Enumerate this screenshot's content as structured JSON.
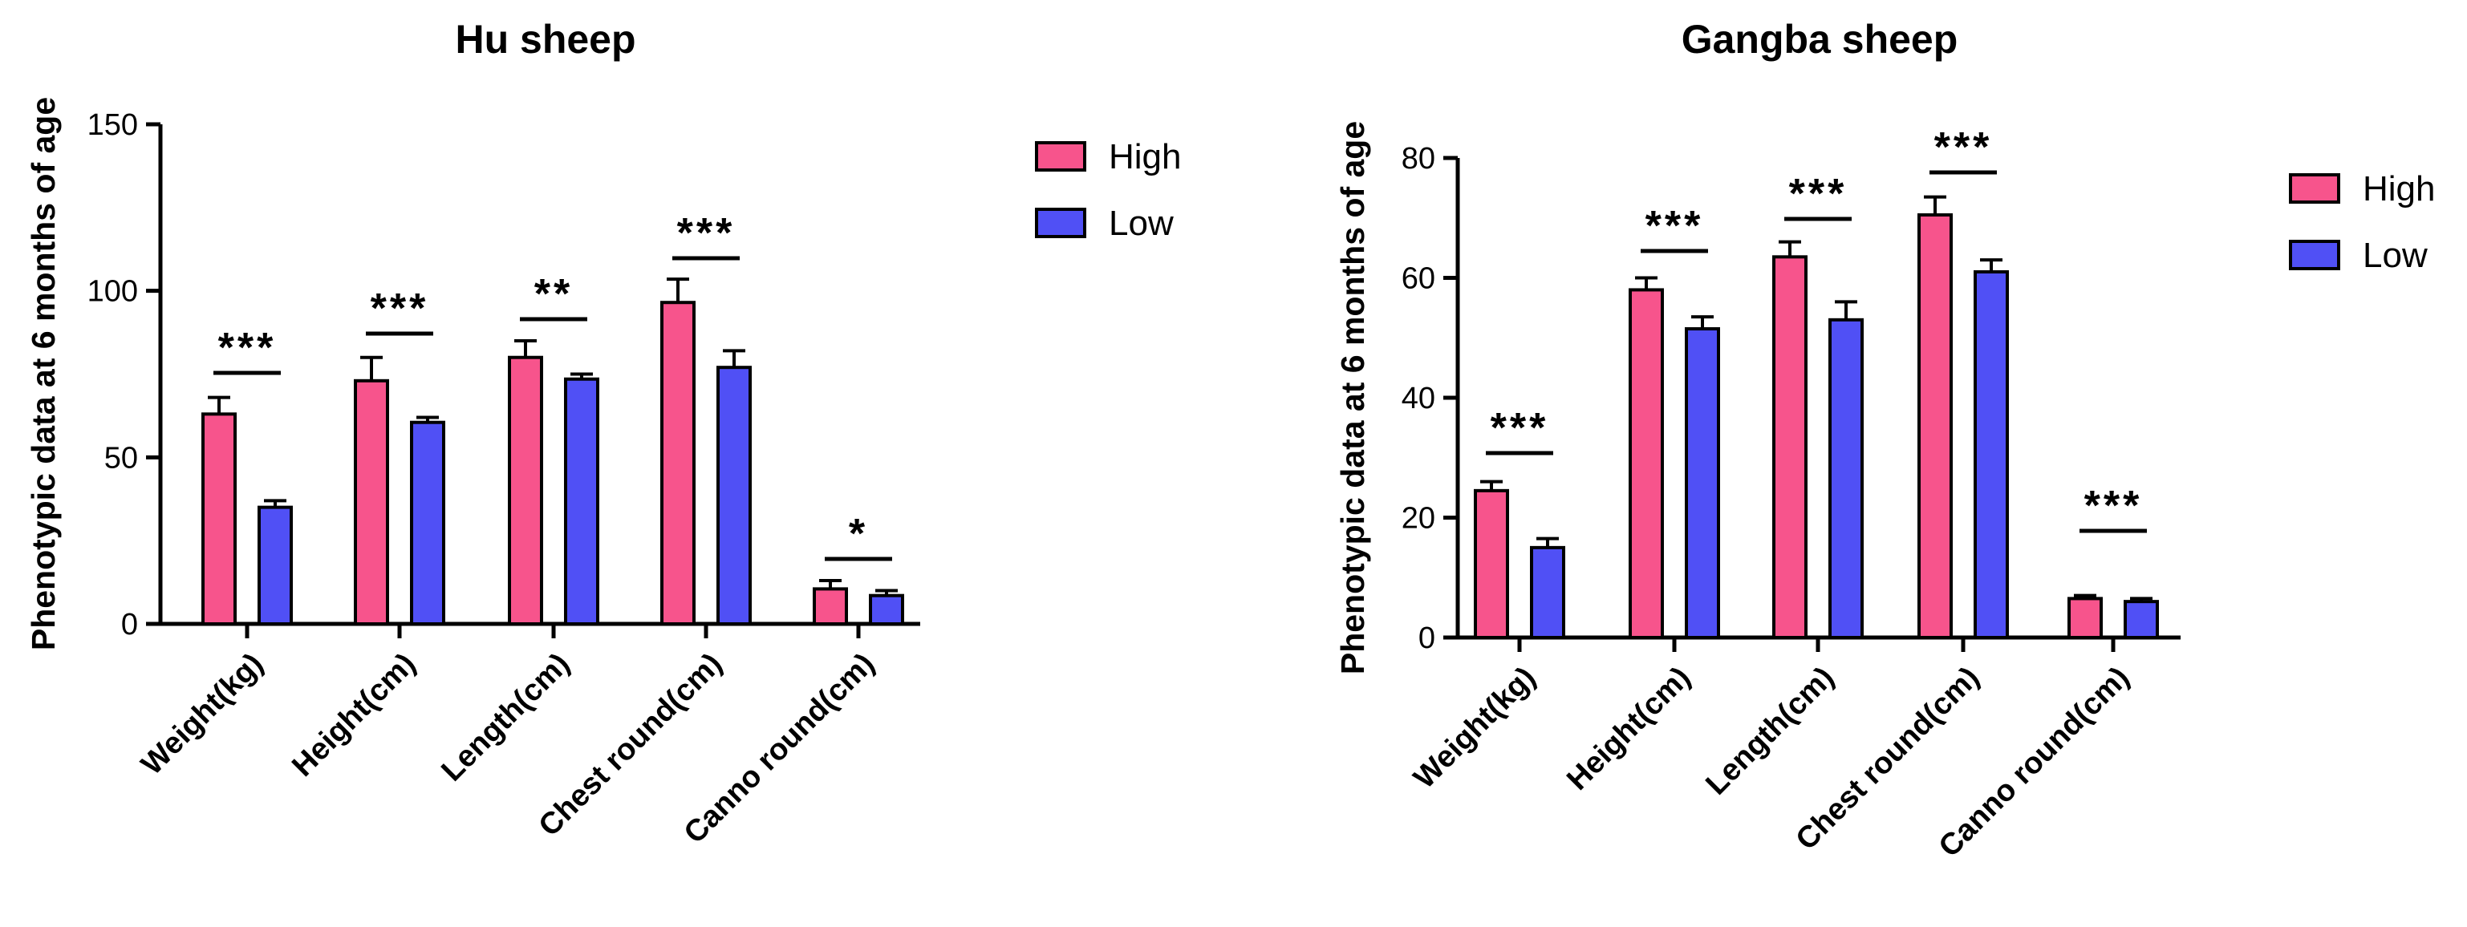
{
  "chart_data": [
    {
      "type": "bar",
      "title": "Hu sheep",
      "xlabel": "",
      "ylabel": "Phenotypic data at 6 months of age",
      "ylim": [
        0,
        150
      ],
      "yticks": [
        0,
        50,
        100,
        150
      ],
      "categories": [
        "Weight(kg)",
        "Height(cm)",
        "Length(cm)",
        "Chest round(cm)",
        "Canno round(cm)"
      ],
      "series": [
        {
          "name": "High",
          "color": "#f7548c",
          "values": [
            63,
            73,
            80,
            96.5,
            10.5
          ],
          "errors": [
            5,
            7,
            5,
            7,
            2.5
          ]
        },
        {
          "name": "Low",
          "color": "#5050f5",
          "values": [
            35,
            60.5,
            73.5,
            77,
            8.5
          ],
          "errors": [
            2,
            1.5,
            1.5,
            5,
            1.5
          ]
        }
      ],
      "significance": [
        "***",
        "***",
        "**",
        "***",
        "*"
      ],
      "legend_position": "right"
    },
    {
      "type": "bar",
      "title": "Gangba sheep",
      "xlabel": "",
      "ylabel": "Phenotypic data at 6 months of age",
      "ylim": [
        0,
        80
      ],
      "yticks": [
        0,
        20,
        40,
        60,
        80
      ],
      "categories": [
        "Weight(kg)",
        "Height(cm)",
        "Length(cm)",
        "Chest round(cm)",
        "Canno round(cm)"
      ],
      "series": [
        {
          "name": "High",
          "color": "#f7548c",
          "values": [
            24.5,
            58,
            63.5,
            70.5,
            6.5
          ],
          "errors": [
            1.5,
            2,
            2.5,
            3,
            0.5
          ]
        },
        {
          "name": "Low",
          "color": "#5050f5",
          "values": [
            15,
            51.5,
            53,
            61,
            6
          ],
          "errors": [
            1.5,
            2,
            3,
            2,
            0.5
          ]
        }
      ],
      "significance": [
        "***",
        "***",
        "***",
        "***",
        "***"
      ],
      "legend_position": "right"
    }
  ]
}
